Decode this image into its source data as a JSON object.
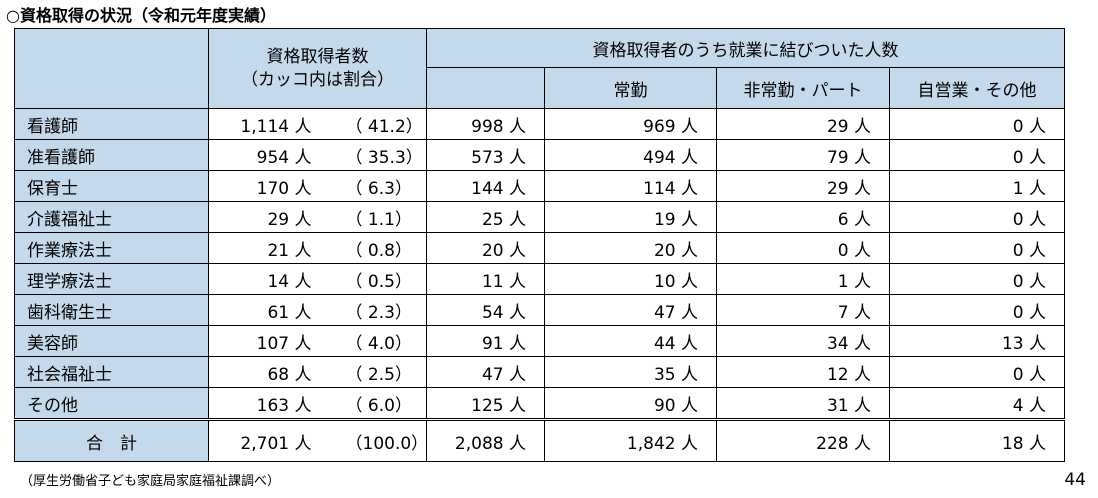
{
  "title": "○資格取得の状況（令和元年度実績）",
  "headers": {
    "acquired_line1": "資格取得者数",
    "acquired_line2": "（カッコ内は割合）",
    "employed": "資格取得者のうち就業に結びついた人数",
    "fulltime": "常勤",
    "parttime": "非常勤・パート",
    "self": "自営業・その他"
  },
  "rows": [
    {
      "name": "看護師",
      "count": "1,114 人",
      "pct": "（ 41.2）",
      "employed": "998 人",
      "fulltime": "969 人",
      "parttime": "29 人",
      "self": "0 人"
    },
    {
      "name": "准看護師",
      "count": "954 人",
      "pct": "（ 35.3）",
      "employed": "573 人",
      "fulltime": "494 人",
      "parttime": "79 人",
      "self": "0 人"
    },
    {
      "name": "保育士",
      "count": "170 人",
      "pct": "（ 6.3）",
      "employed": "144 人",
      "fulltime": "114 人",
      "parttime": "29 人",
      "self": "1 人"
    },
    {
      "name": "介護福祉士",
      "count": "29 人",
      "pct": "（ 1.1）",
      "employed": "25 人",
      "fulltime": "19 人",
      "parttime": "6 人",
      "self": "0 人"
    },
    {
      "name": "作業療法士",
      "count": "21 人",
      "pct": "（ 0.8）",
      "employed": "20 人",
      "fulltime": "20 人",
      "parttime": "0 人",
      "self": "0 人"
    },
    {
      "name": "理学療法士",
      "count": "14 人",
      "pct": "（ 0.5）",
      "employed": "11 人",
      "fulltime": "10 人",
      "parttime": "1 人",
      "self": "0 人"
    },
    {
      "name": "歯科衛生士",
      "count": "61 人",
      "pct": "（ 2.3）",
      "employed": "54 人",
      "fulltime": "47 人",
      "parttime": "7 人",
      "self": "0 人"
    },
    {
      "name": "美容師",
      "count": "107 人",
      "pct": "（ 4.0）",
      "employed": "91 人",
      "fulltime": "44 人",
      "parttime": "34 人",
      "self": "13 人"
    },
    {
      "name": "社会福祉士",
      "count": "68 人",
      "pct": "（ 2.5）",
      "employed": "47 人",
      "fulltime": "35 人",
      "parttime": "12 人",
      "self": "0 人"
    },
    {
      "name": "その他",
      "count": "163 人",
      "pct": "（ 6.0）",
      "employed": "125 人",
      "fulltime": "90 人",
      "parttime": "31 人",
      "self": "4 人"
    }
  ],
  "total": {
    "name": "合　計",
    "count": "2,701 人",
    "pct": "（100.0）",
    "employed": "2,088 人",
    "fulltime": "1,842 人",
    "parttime": "228 人",
    "self": "18 人"
  },
  "source": "（厚生労働省子ども家庭局家庭福祉課調べ）",
  "page_number": "44"
}
